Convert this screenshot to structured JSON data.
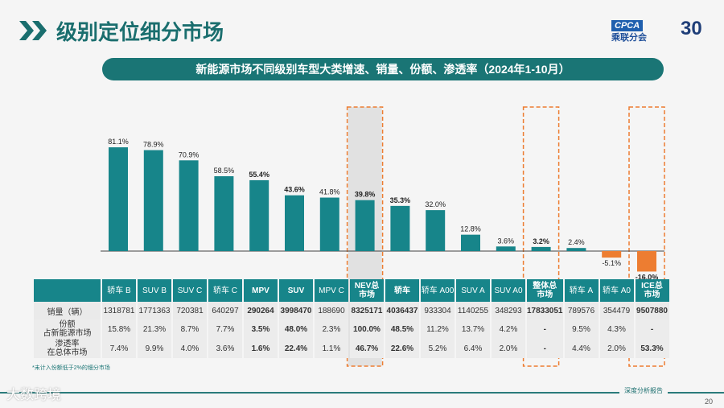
{
  "header": {
    "title": "级别定位细分市场",
    "logo_text": "CPCA",
    "logo_sub": "乘联分会",
    "anniversary": "30"
  },
  "subtitle": "新能源市场不同级别车型大类增速、销量、份额、渗透率（2024年1-10月）",
  "colors": {
    "positive": "#17858a",
    "negative": "#ed7d31",
    "highlight_border": "#ed7d31"
  },
  "chart_data": {
    "type": "bar",
    "categories": [
      "轿车 B",
      "SUV B",
      "SUV C",
      "轿车 C",
      "MPV",
      "SUV",
      "MPV C",
      "NEV总市场",
      "轿车",
      "轿车 A00",
      "SUV A",
      "SUV A0",
      "整体总市场",
      "轿车 A",
      "轿车 A0",
      "ICE总市场"
    ],
    "values": [
      81.1,
      78.9,
      70.9,
      58.5,
      55.4,
      43.6,
      41.8,
      39.8,
      35.3,
      32.0,
      12.8,
      3.6,
      3.2,
      2.4,
      -5.1,
      -16.0
    ],
    "data_labels": [
      "81.1%",
      "78.9%",
      "70.9%",
      "58.5%",
      "55.4%",
      "43.6%",
      "41.8%",
      "39.8%",
      "35.3%",
      "32.0%",
      "12.8%",
      "3.6%",
      "3.2%",
      "2.4%",
      "-5.1%",
      "-16.0%"
    ],
    "bold": [
      false,
      false,
      false,
      false,
      true,
      true,
      false,
      true,
      true,
      false,
      false,
      false,
      true,
      false,
      false,
      true
    ],
    "highlighted": [
      "NEV总市场",
      "整体总市场",
      "ICE总市场"
    ],
    "grid": false
  },
  "table": {
    "headers": [
      "轿车 B",
      "SUV B",
      "SUV C",
      "轿车 C",
      "MPV",
      "SUV",
      "MPV C",
      "NEV总\n市场",
      "轿车",
      "轿车 A00",
      "SUV A",
      "SUV A0",
      "整体总\n市场",
      "轿车 A",
      "轿车 A0",
      "ICE总\n市场"
    ],
    "rows": [
      {
        "label": "销量（辆）",
        "values": [
          "1318781",
          "1771363",
          "720381",
          "640297",
          "290264",
          "3998470",
          "188690",
          "8325171",
          "4036437",
          "933304",
          "1140255",
          "348293",
          "17833051",
          "789576",
          "354479",
          "9507880"
        ]
      },
      {
        "label": "份额\n占新能源市场",
        "values": [
          "15.8%",
          "21.3%",
          "8.7%",
          "7.7%",
          "3.5%",
          "48.0%",
          "2.3%",
          "100.0%",
          "48.5%",
          "11.2%",
          "13.7%",
          "4.2%",
          "-",
          "9.5%",
          "4.3%",
          "-"
        ]
      },
      {
        "label": "渗透率\n在总体市场",
        "values": [
          "7.4%",
          "9.9%",
          "4.0%",
          "3.6%",
          "1.6%",
          "22.4%",
          "1.1%",
          "46.7%",
          "22.6%",
          "5.2%",
          "6.4%",
          "2.0%",
          "-",
          "4.4%",
          "2.0%",
          "53.3%"
        ]
      }
    ]
  },
  "note": "*未计入份额低于2%的细分市场",
  "footer": {
    "report": "深度分析报告",
    "page": "20",
    "watermark": "大数跨境"
  }
}
